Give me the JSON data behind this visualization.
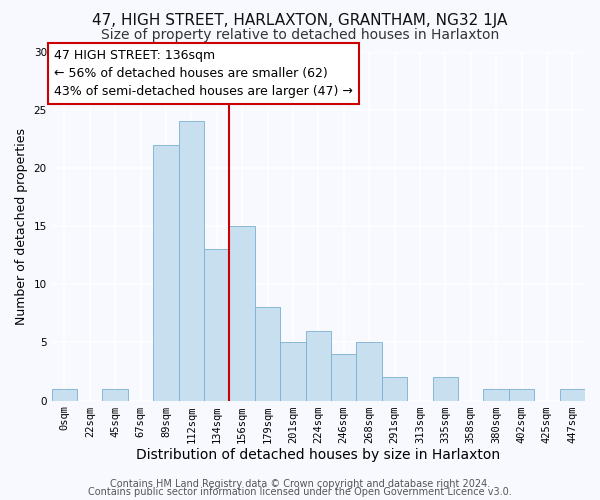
{
  "title": "47, HIGH STREET, HARLAXTON, GRANTHAM, NG32 1JA",
  "subtitle": "Size of property relative to detached houses in Harlaxton",
  "xlabel": "Distribution of detached houses by size in Harlaxton",
  "ylabel": "Number of detached properties",
  "bar_labels": [
    "0sqm",
    "22sqm",
    "45sqm",
    "67sqm",
    "89sqm",
    "112sqm",
    "134sqm",
    "156sqm",
    "179sqm",
    "201sqm",
    "224sqm",
    "246sqm",
    "268sqm",
    "291sqm",
    "313sqm",
    "335sqm",
    "358sqm",
    "380sqm",
    "402sqm",
    "425sqm",
    "447sqm"
  ],
  "bar_heights": [
    1,
    0,
    1,
    0,
    22,
    24,
    13,
    15,
    8,
    5,
    6,
    4,
    5,
    2,
    0,
    2,
    0,
    1,
    1,
    0,
    1
  ],
  "bar_color": "#c8dff0",
  "bar_edge_color": "#7ab0d0",
  "vline_color": "#cc0000",
  "ylim": [
    0,
    30
  ],
  "yticks": [
    0,
    5,
    10,
    15,
    20,
    25,
    30
  ],
  "annotation_title": "47 HIGH STREET: 136sqm",
  "annotation_line1": "← 56% of detached houses are smaller (62)",
  "annotation_line2": "43% of semi-detached houses are larger (47) →",
  "footer1": "Contains HM Land Registry data © Crown copyright and database right 2024.",
  "footer2": "Contains public sector information licensed under the Open Government Licence v3.0.",
  "background_color": "#f8f9ff",
  "plot_bg_color": "#f8f9ff",
  "annotation_box_color": "#ffffff",
  "annotation_box_edge": "#cc0000",
  "title_fontsize": 11,
  "subtitle_fontsize": 10,
  "xlabel_fontsize": 10,
  "ylabel_fontsize": 9,
  "tick_fontsize": 7.5,
  "annotation_fontsize": 9,
  "footer_fontsize": 7
}
